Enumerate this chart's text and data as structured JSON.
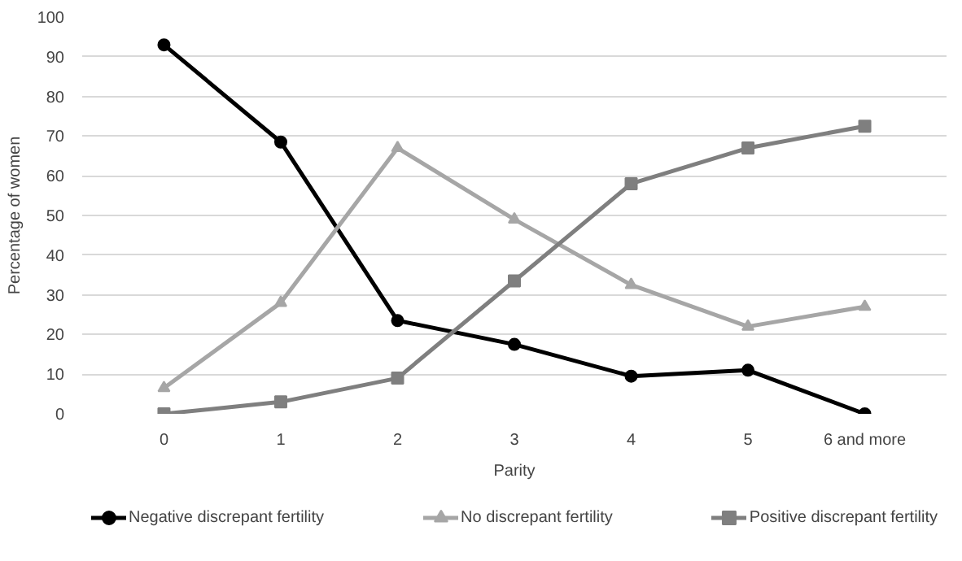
{
  "chart_data": {
    "type": "line",
    "xlabel": "Parity",
    "ylabel": "Percentage of women",
    "categories": [
      "0",
      "1",
      "2",
      "3",
      "4",
      "5",
      "6 and more"
    ],
    "ylim": [
      0,
      100
    ],
    "yticks": [
      0,
      10,
      20,
      30,
      40,
      50,
      60,
      70,
      80,
      90,
      100
    ],
    "grid": "y",
    "legend": "bottom",
    "line_style": "solid",
    "series": [
      {
        "name": "Negative discrepant fertility",
        "color": "#000000",
        "marker": "circle",
        "values": [
          93,
          68.5,
          23.5,
          17.5,
          9.5,
          11,
          0
        ]
      },
      {
        "name": "No discrepant fertility",
        "color": "#a6a6a6",
        "marker": "triangle",
        "values": [
          6.5,
          28,
          67,
          49,
          32.5,
          22,
          27
        ]
      },
      {
        "name": "Positive discrepant fertility",
        "color": "#7f7f7f",
        "marker": "square",
        "values": [
          0,
          3,
          9,
          33.5,
          58,
          67,
          72.5
        ]
      }
    ]
  }
}
